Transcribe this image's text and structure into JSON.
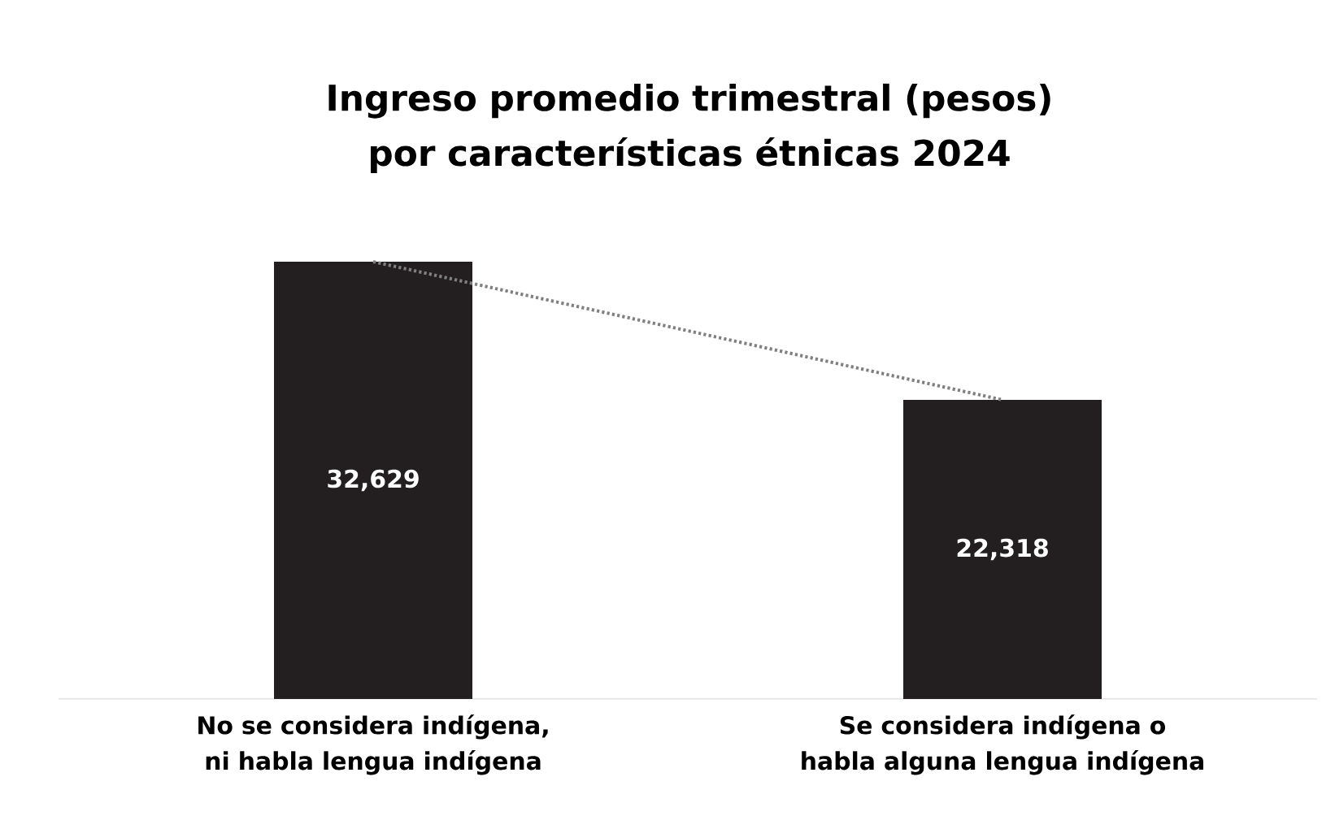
{
  "chart_data": {
    "type": "bar",
    "title": "Ingreso promedio trimestral (pesos) por características étnicas 2024",
    "categories": [
      "No se considera indígena, ni habla lengua indígena",
      "Se considera indígena o habla alguna lengua indígena"
    ],
    "series": [
      {
        "color": "#231f20",
        "values": [
          32629,
          22318
        ],
        "value_labels": [
          "32,629",
          "22,318"
        ]
      },
      {
        "type": "line",
        "color": "#808080",
        "line_style": "dotted",
        "values": [
          32629,
          22318
        ]
      }
    ]
  }
}
